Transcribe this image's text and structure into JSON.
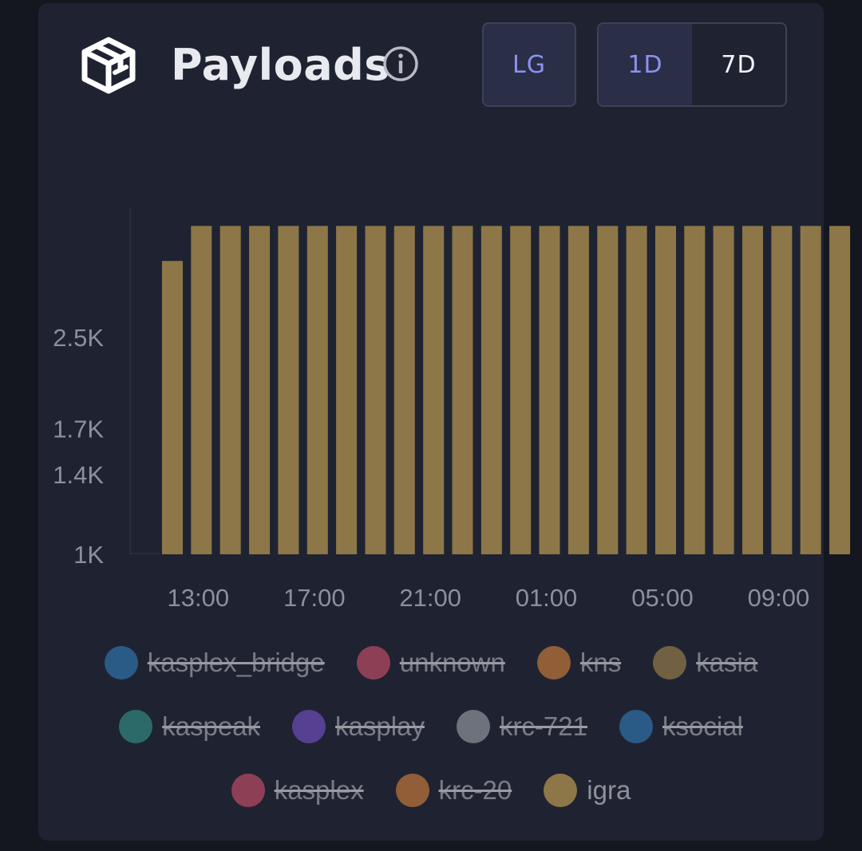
{
  "header": {
    "title": "Payloads",
    "lg_label": "LG",
    "range_options": [
      {
        "label": "1D",
        "active": true
      },
      {
        "label": "7D",
        "active": false
      }
    ]
  },
  "colors": {
    "bar": "#8d7748",
    "card": "#1f2331",
    "accent": "#8b92f1"
  },
  "chart_data": {
    "type": "bar",
    "title": "Payloads",
    "scale": "log",
    "ylim": [
      1000,
      4400
    ],
    "y_ticks": [
      {
        "value": 1000,
        "label": "1K"
      },
      {
        "value": 1400,
        "label": "1.4K"
      },
      {
        "value": 1700,
        "label": "1.7K"
      },
      {
        "value": 2500,
        "label": "2.5K"
      }
    ],
    "x_ticks": [
      "13:00",
      "17:00",
      "21:00",
      "01:00",
      "05:00",
      "09:00"
    ],
    "categories": [
      "12:00",
      "13:00",
      "14:00",
      "15:00",
      "16:00",
      "17:00",
      "18:00",
      "19:00",
      "20:00",
      "21:00",
      "22:00",
      "23:00",
      "00:00",
      "01:00",
      "02:00",
      "03:00",
      "04:00",
      "05:00",
      "06:00",
      "07:00",
      "08:00",
      "09:00",
      "10:00",
      "11:00"
    ],
    "series": [
      {
        "name": "igra",
        "values": [
          3450,
          4000,
          4000,
          4000,
          4000,
          4000,
          4000,
          4000,
          4000,
          4000,
          4000,
          4000,
          4000,
          4000,
          4000,
          4000,
          4000,
          4000,
          4000,
          4000,
          4000,
          4000,
          4000,
          4000
        ]
      }
    ]
  },
  "legend": [
    {
      "label": "kasplex_bridge",
      "color": "#2f6fa3",
      "enabled": false
    },
    {
      "label": "unknown",
      "color": "#b34a63",
      "enabled": false
    },
    {
      "label": "kns",
      "color": "#b8733a",
      "enabled": false
    },
    {
      "label": "kasia",
      "color": "#8d7748",
      "enabled": false
    },
    {
      "label": "kaspeak",
      "color": "#32837d",
      "enabled": false
    },
    {
      "label": "kasplay",
      "color": "#6a4bb3",
      "enabled": false
    },
    {
      "label": "krc-721",
      "color": "#8a8d96",
      "enabled": false
    },
    {
      "label": "ksocial",
      "color": "#2f6fa3",
      "enabled": false
    },
    {
      "label": "kasplex",
      "color": "#b34a63",
      "enabled": false
    },
    {
      "label": "krc-20",
      "color": "#b8733a",
      "enabled": false
    },
    {
      "label": "igra",
      "color": "#8d7748",
      "enabled": true
    }
  ]
}
